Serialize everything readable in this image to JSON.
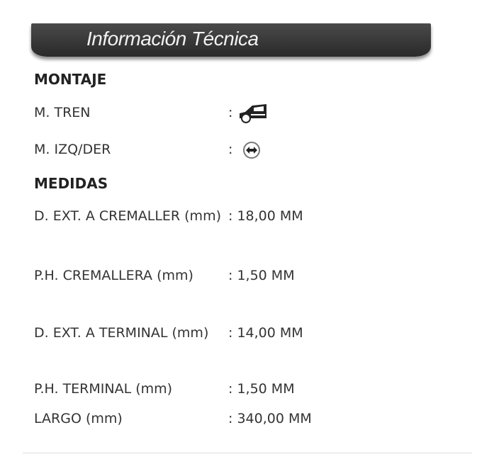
{
  "header": {
    "title": "Información Técnica"
  },
  "sections": [
    {
      "title": "MONTAJE",
      "rows": [
        {
          "label": "M. TREN",
          "value": "",
          "icon": "car-front-icon"
        },
        {
          "label": "M. IZQ/DER",
          "value": "",
          "icon": "left-right-arrow-circle-icon"
        }
      ]
    },
    {
      "title": "MEDIDAS",
      "rows": [
        {
          "label": "D. EXT. A CREMALLER (mm)",
          "value": "18,00 MM"
        },
        {
          "label": "P.H. CREMALLERA (mm)",
          "value": "1,50 MM"
        },
        {
          "label": "D. EXT. A TERMINAL (mm)",
          "value": "14,00 MM"
        },
        {
          "label": "P.H. TERMINAL (mm)",
          "value": "1,50 MM"
        },
        {
          "label": "LARGO (mm)",
          "value": "340,00 MM"
        }
      ]
    }
  ],
  "separator": ":"
}
